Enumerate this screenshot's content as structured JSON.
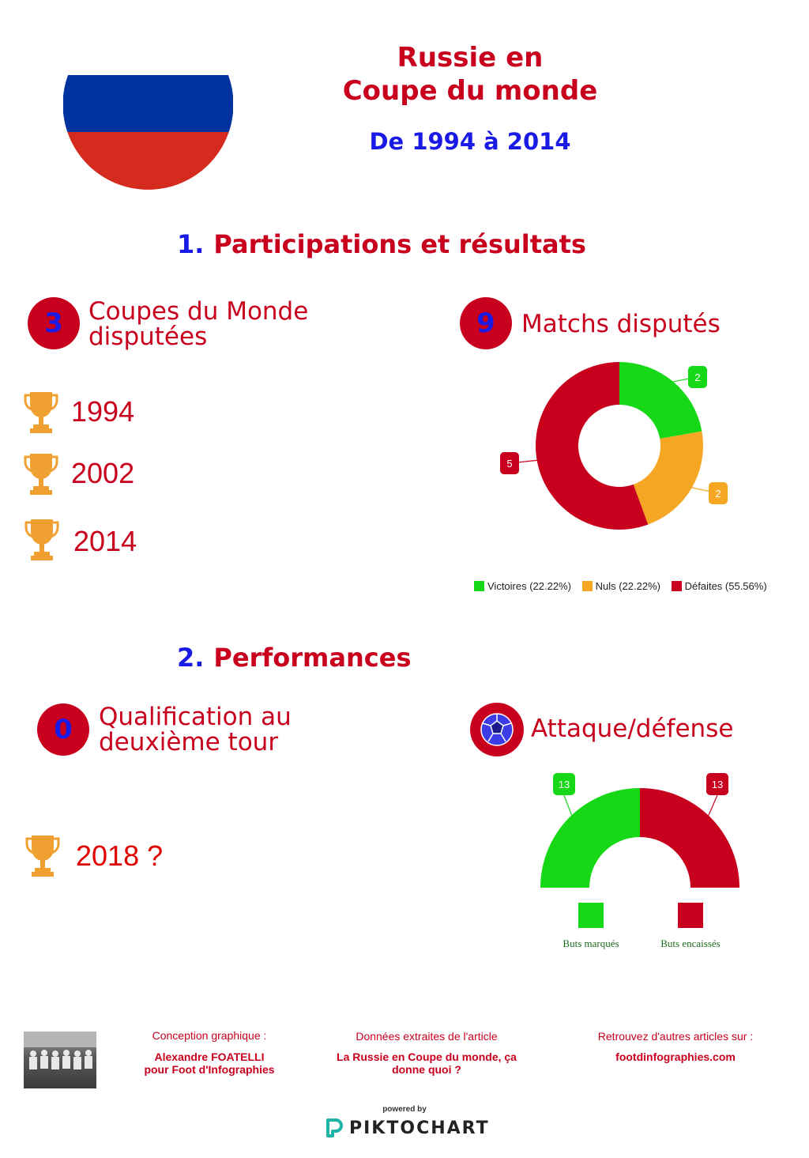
{
  "header": {
    "title_line1": "Russie en",
    "title_line2": "Coupe du monde",
    "subtitle": "De 1994 à 2014"
  },
  "colors": {
    "red": "#c8001e",
    "blue": "#1a1ae6",
    "green": "#17d817",
    "orange": "#f5a623",
    "flag_blue": "#0033a0",
    "flag_red": "#d52b1e",
    "trophy": "#f0a030"
  },
  "section1": {
    "number": "1.",
    "title": "Participations et résultats",
    "world_cups": {
      "count": "3",
      "label_line1": "Coupes du Monde",
      "label_line2": "disputées"
    },
    "years": [
      "1994",
      "2002",
      "2014"
    ],
    "matches": {
      "count": "9",
      "label": "Matchs disputés"
    }
  },
  "section2": {
    "number": "2.",
    "title": "Performances",
    "qualif": {
      "count": "0",
      "label_line1": "Qualification au",
      "label_line2": "deuxième tour"
    },
    "next_year": "2018 ?",
    "attack": {
      "icon": "soccer-ball-icon",
      "label": "Attaque/défense"
    }
  },
  "chart_data": [
    {
      "type": "pie",
      "variant": "donut",
      "categories": [
        "Victoires",
        "Nuls",
        "Défaites"
      ],
      "values": [
        2,
        2,
        5
      ],
      "value_labels": [
        "2",
        "2",
        "5"
      ],
      "legend": [
        "Victoires (22.22%)",
        "Nuls (22.22%)",
        "Défaites (55.56%)"
      ],
      "colors": [
        "#17d817",
        "#f5a623",
        "#c8001e"
      ],
      "legend_position": "bottom"
    },
    {
      "type": "pie",
      "variant": "semi-donut",
      "categories": [
        "Buts marqués",
        "Buts encaissés"
      ],
      "values": [
        13,
        13
      ],
      "value_labels": [
        "13",
        "13"
      ],
      "colors": [
        "#17d817",
        "#c8001e"
      ],
      "legend_position": "bottom"
    }
  ],
  "footer": {
    "design_heading": "Conception graphique :",
    "design_line1": "Alexandre FOATELLI",
    "design_line2": "pour Foot d'Infographies",
    "data_heading": "Données extraites de l'article",
    "data_line1": "La Russie en Coupe du monde, ça",
    "data_line2": "donne quoi ?",
    "more_heading": "Retrouvez d'autres articles sur :",
    "more_link": "footdinfographies.com",
    "powered_by": "powered by",
    "brand": "PIKTOCHART"
  }
}
